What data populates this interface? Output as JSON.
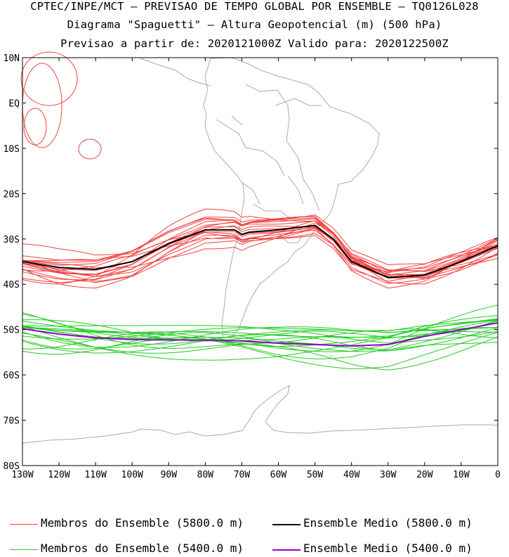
{
  "header": {
    "line1": "CPTEC/INPE/MCT – PREVISAO DE TEMPO GLOBAL POR ENSEMBLE – TQ0126L028",
    "line2": "Diagrama \"Spaguetti\" – Altura Geopotencial (m) (500 hPa)",
    "line3": "Previsao a partir de: 2020121000Z  Valido para: 2020122500Z"
  },
  "axes": {
    "lat_labels": [
      "10N",
      "EQ",
      "10S",
      "20S",
      "30S",
      "40S",
      "50S",
      "60S",
      "70S",
      "80S"
    ],
    "lon_labels": [
      "130W",
      "120W",
      "110W",
      "100W",
      "90W",
      "80W",
      "70W",
      "60W",
      "50W",
      "40W",
      "30W",
      "20W",
      "10W",
      "0"
    ],
    "lon_range": [
      -130,
      0
    ],
    "lat_range": [
      -80,
      10
    ]
  },
  "colors": {
    "member_5800": "#f04040",
    "mean_5800": "#000000",
    "member_5400": "#22cc22",
    "mean_5400": "#9900cc",
    "coast": "#aaaaaa"
  },
  "chart_data": {
    "type": "line",
    "x_unit": "longitude (deg)",
    "y_unit": "latitude (deg)",
    "series": [
      {
        "name": "Ensemble Medio (5800.0 m)",
        "lon": [
          -130,
          -120,
          -110,
          -100,
          -90,
          -80,
          -72,
          -70,
          -68,
          -60,
          -50,
          -45,
          -40,
          -30,
          -20,
          -10,
          0
        ],
        "lat": [
          -35,
          -36.3,
          -36.7,
          -35,
          -31,
          -28,
          -28,
          -29,
          -28.5,
          -28,
          -27,
          -30,
          -35,
          -38.5,
          -38,
          -35,
          -31.5
        ]
      },
      {
        "name": "Ensemble Medio (5400.0 m)",
        "lon": [
          -130,
          -120,
          -110,
          -100,
          -90,
          -80,
          -70,
          -60,
          -50,
          -40,
          -30,
          -20,
          -10,
          0
        ],
        "lat": [
          -49.8,
          -51,
          -51.8,
          -52.2,
          -52.3,
          -52.3,
          -52.5,
          -53,
          -53.3,
          -53.6,
          -53.3,
          -51.5,
          -50,
          -48.5
        ]
      }
    ],
    "member_base_5800": {
      "lon": [
        -130,
        -120,
        -110,
        -100,
        -90,
        -80,
        -72,
        -70,
        -68,
        -60,
        -50,
        -45,
        -40,
        -30,
        -20,
        -10,
        0
      ],
      "lat": [
        -35,
        -36.3,
        -36.7,
        -35,
        -31,
        -28,
        -28,
        -29,
        -28.5,
        -28,
        -27,
        -30,
        -35,
        -38.5,
        -38,
        -35,
        -31.5
      ]
    },
    "member_base_5400": {
      "lon": [
        -130,
        -120,
        -110,
        -100,
        -90,
        -80,
        -70,
        -60,
        -50,
        -40,
        -30,
        -20,
        -10,
        0
      ],
      "lat": [
        -49.8,
        -51,
        -51.8,
        -52.2,
        -52.3,
        -52.3,
        -52.5,
        -53,
        -53.3,
        -53.6,
        -53.3,
        -51.5,
        -50,
        -48.5
      ]
    },
    "members_5800": 18,
    "members_5400": 18
  },
  "legend": [
    {
      "label": "Membros do Ensemble (5800.0 m)",
      "color": "#f04040"
    },
    {
      "label": "Ensemble Medio (5800.0 m)",
      "color": "#000000"
    },
    {
      "label": "Membros do Ensemble (5400.0 m)",
      "color": "#22cc22"
    },
    {
      "label": "Ensemble Medio (5400.0 m)",
      "color": "#9900cc"
    }
  ]
}
